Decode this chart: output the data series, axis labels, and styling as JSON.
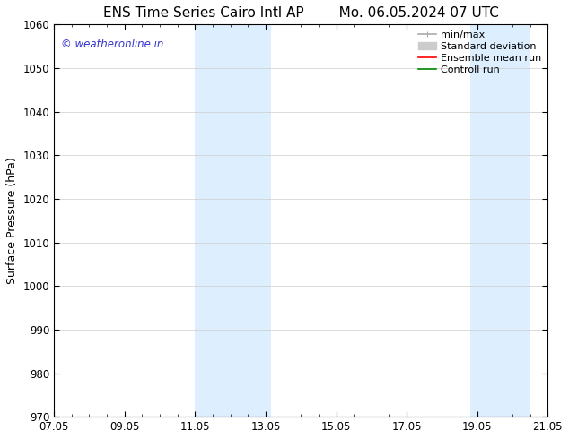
{
  "title_left": "ENS Time Series Cairo Intl AP",
  "title_right": "Mo. 06.05.2024 07 UTC",
  "ylabel": "Surface Pressure (hPa)",
  "ylim": [
    970,
    1060
  ],
  "yticks": [
    970,
    980,
    990,
    1000,
    1010,
    1020,
    1030,
    1040,
    1050,
    1060
  ],
  "xticks": [
    "07.05",
    "09.05",
    "11.05",
    "13.05",
    "15.05",
    "17.05",
    "19.05",
    "21.05"
  ],
  "xtick_positions": [
    0,
    2,
    4,
    6,
    8,
    10,
    12,
    14
  ],
  "shaded_regions": [
    {
      "x_start": 4.0,
      "x_end": 6.15
    },
    {
      "x_start": 11.8,
      "x_end": 13.5
    }
  ],
  "shade_color": "#ddeeff",
  "background_color": "#ffffff",
  "watermark_text": "© weatheronline.in",
  "watermark_color": "#3333cc",
  "legend_items": [
    {
      "label": "min/max",
      "color": "#aaaaaa",
      "lw": 1.2
    },
    {
      "label": "Standard deviation",
      "color": "#cccccc",
      "lw": 5
    },
    {
      "label": "Ensemble mean run",
      "color": "#ff0000",
      "lw": 1.2
    },
    {
      "label": "Controll run",
      "color": "#008800",
      "lw": 1.2
    }
  ],
  "title_fontsize": 11,
  "axis_fontsize": 9,
  "tick_fontsize": 8.5,
  "watermark_fontsize": 8.5,
  "legend_fontsize": 8
}
